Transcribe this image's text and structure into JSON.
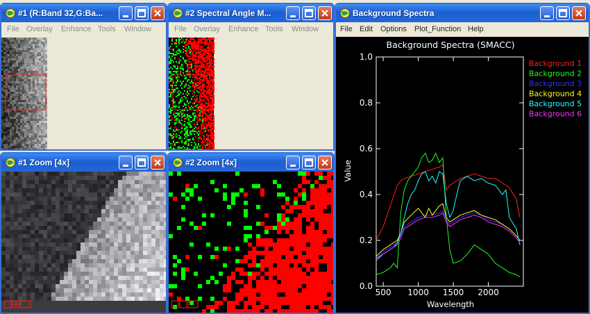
{
  "windows": {
    "img1": {
      "title": "#1 (R:Band 32,G:Ba...",
      "menu": [
        "File",
        "Overlay",
        "Enhance",
        "Tools",
        "Window"
      ]
    },
    "img2": {
      "title": "#2 Spectral Angle M...",
      "menu": [
        "File",
        "Overlay",
        "Enhance",
        "Tools",
        "Window"
      ]
    },
    "zoom1": {
      "title": "#1 Zoom [4x]"
    },
    "zoom2": {
      "title": "#2 Zoom [4x]"
    },
    "spectra": {
      "title": "Background Spectra",
      "menu": [
        "File",
        "Edit",
        "Options",
        "Plot_Function",
        "Help"
      ]
    }
  },
  "colors": {
    "titlebar": "#2466d7",
    "plot_bg": "#000000",
    "axis": "#ffffff",
    "class_red": "#ff0000",
    "class_green": "#00ff00"
  },
  "chart_data": {
    "type": "line",
    "title": "Background Spectra (SMACC)",
    "xlabel": "Wavelength",
    "ylabel": "Value",
    "xlim": [
      400,
      2500
    ],
    "ylim": [
      0.0,
      1.0
    ],
    "xticks": [
      500,
      1000,
      1500,
      2000
    ],
    "yticks": [
      "0.0",
      "0.2",
      "0.4",
      "0.6",
      "0.8",
      "1.0"
    ],
    "grid": false,
    "legend_position": "top-right",
    "series": [
      {
        "name": "Background 1",
        "color": "#ff2020",
        "x": [
          400,
          500,
          600,
          700,
          750,
          800,
          900,
          1000,
          1100,
          1200,
          1300,
          1350,
          1400,
          1450,
          1500,
          1600,
          1700,
          1800,
          1900,
          2000,
          2100,
          2200,
          2300,
          2400,
          2450
        ],
        "y": [
          0.2,
          0.26,
          0.35,
          0.44,
          0.46,
          0.47,
          0.48,
          0.49,
          0.5,
          0.51,
          0.52,
          0.53,
          0.42,
          0.44,
          0.45,
          0.47,
          0.48,
          0.49,
          0.48,
          0.47,
          0.47,
          0.45,
          0.43,
          0.38,
          0.3
        ]
      },
      {
        "name": "Background 2",
        "color": "#20ff20",
        "x": [
          400,
          500,
          600,
          650,
          700,
          720,
          750,
          800,
          850,
          900,
          950,
          1000,
          1050,
          1100,
          1150,
          1200,
          1250,
          1300,
          1350,
          1400,
          1450,
          1500,
          1600,
          1700,
          1800,
          1900,
          2000,
          2100,
          2200,
          2300,
          2400,
          2450
        ],
        "y": [
          0.05,
          0.06,
          0.08,
          0.1,
          0.08,
          0.17,
          0.32,
          0.42,
          0.46,
          0.48,
          0.5,
          0.52,
          0.56,
          0.58,
          0.54,
          0.55,
          0.58,
          0.54,
          0.56,
          0.3,
          0.16,
          0.1,
          0.11,
          0.14,
          0.18,
          0.16,
          0.14,
          0.1,
          0.08,
          0.06,
          0.05,
          0.04
        ]
      },
      {
        "name": "Background 3",
        "color": "#3030ff",
        "x": [
          400,
          500,
          600,
          700,
          750,
          800,
          900,
          1000,
          1100,
          1200,
          1300,
          1350,
          1400,
          1450,
          1500,
          1600,
          1700,
          1800,
          1900,
          2000,
          2100,
          2200,
          2300,
          2400,
          2450
        ],
        "y": [
          0.12,
          0.15,
          0.17,
          0.19,
          0.22,
          0.26,
          0.28,
          0.3,
          0.31,
          0.31,
          0.32,
          0.33,
          0.29,
          0.27,
          0.28,
          0.3,
          0.31,
          0.32,
          0.31,
          0.29,
          0.28,
          0.27,
          0.25,
          0.22,
          0.2
        ]
      },
      {
        "name": "Background 4",
        "color": "#ffff20",
        "x": [
          400,
          500,
          600,
          700,
          750,
          800,
          900,
          1000,
          1100,
          1150,
          1200,
          1300,
          1350,
          1400,
          1450,
          1500,
          1600,
          1700,
          1800,
          1900,
          2000,
          2100,
          2200,
          2300,
          2400,
          2450
        ],
        "y": [
          0.13,
          0.16,
          0.18,
          0.2,
          0.23,
          0.28,
          0.31,
          0.34,
          0.3,
          0.34,
          0.31,
          0.35,
          0.36,
          0.3,
          0.28,
          0.29,
          0.31,
          0.32,
          0.33,
          0.31,
          0.3,
          0.29,
          0.27,
          0.25,
          0.22,
          0.2
        ]
      },
      {
        "name": "Background 5",
        "color": "#20ffff",
        "x": [
          400,
          500,
          600,
          650,
          700,
          750,
          800,
          850,
          900,
          950,
          1000,
          1050,
          1100,
          1150,
          1200,
          1250,
          1300,
          1350,
          1400,
          1450,
          1500,
          1550,
          1600,
          1700,
          1800,
          1900,
          2000,
          2100,
          2200,
          2250,
          2300,
          2400,
          2450
        ],
        "y": [
          0.12,
          0.14,
          0.16,
          0.17,
          0.19,
          0.23,
          0.3,
          0.36,
          0.4,
          0.42,
          0.46,
          0.49,
          0.5,
          0.46,
          0.48,
          0.45,
          0.5,
          0.49,
          0.36,
          0.3,
          0.33,
          0.4,
          0.46,
          0.48,
          0.46,
          0.47,
          0.45,
          0.44,
          0.4,
          0.42,
          0.3,
          0.25,
          0.18
        ]
      },
      {
        "name": "Background 6",
        "color": "#ff30ff",
        "x": [
          400,
          500,
          600,
          700,
          750,
          800,
          900,
          1000,
          1100,
          1200,
          1300,
          1350,
          1400,
          1450,
          1500,
          1600,
          1700,
          1800,
          1900,
          2000,
          2100,
          2200,
          2300,
          2400,
          2450
        ],
        "y": [
          0.11,
          0.14,
          0.16,
          0.18,
          0.21,
          0.25,
          0.27,
          0.29,
          0.3,
          0.3,
          0.31,
          0.32,
          0.28,
          0.26,
          0.27,
          0.29,
          0.3,
          0.31,
          0.3,
          0.28,
          0.27,
          0.26,
          0.24,
          0.21,
          0.19
        ]
      }
    ]
  }
}
